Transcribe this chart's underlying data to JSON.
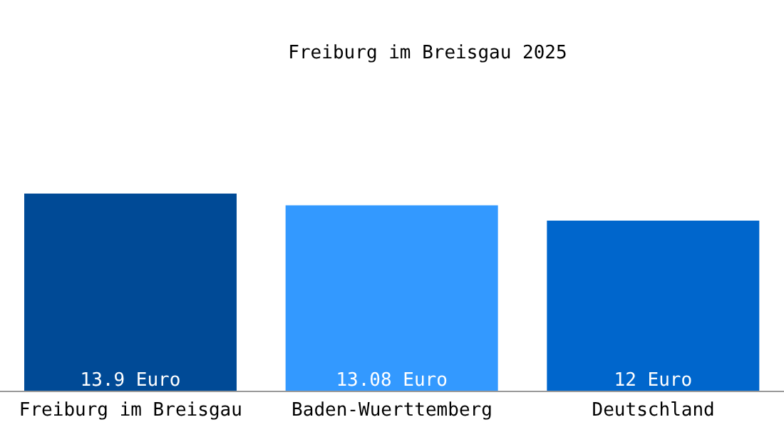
{
  "chart_data": {
    "type": "bar",
    "title": "Freiburg im Breisgau 2025",
    "categories": [
      "Freiburg im Breisgau",
      "Baden-Wuerttemberg",
      "Deutschland"
    ],
    "values": [
      13.9,
      13.08,
      12
    ],
    "colors": [
      "#004a96",
      "#3399ff",
      "#0066cc"
    ],
    "value_labels": [
      "13.9 Euro",
      "13.08 Euro",
      "12 Euro"
    ],
    "grid": false,
    "legend": false
  }
}
